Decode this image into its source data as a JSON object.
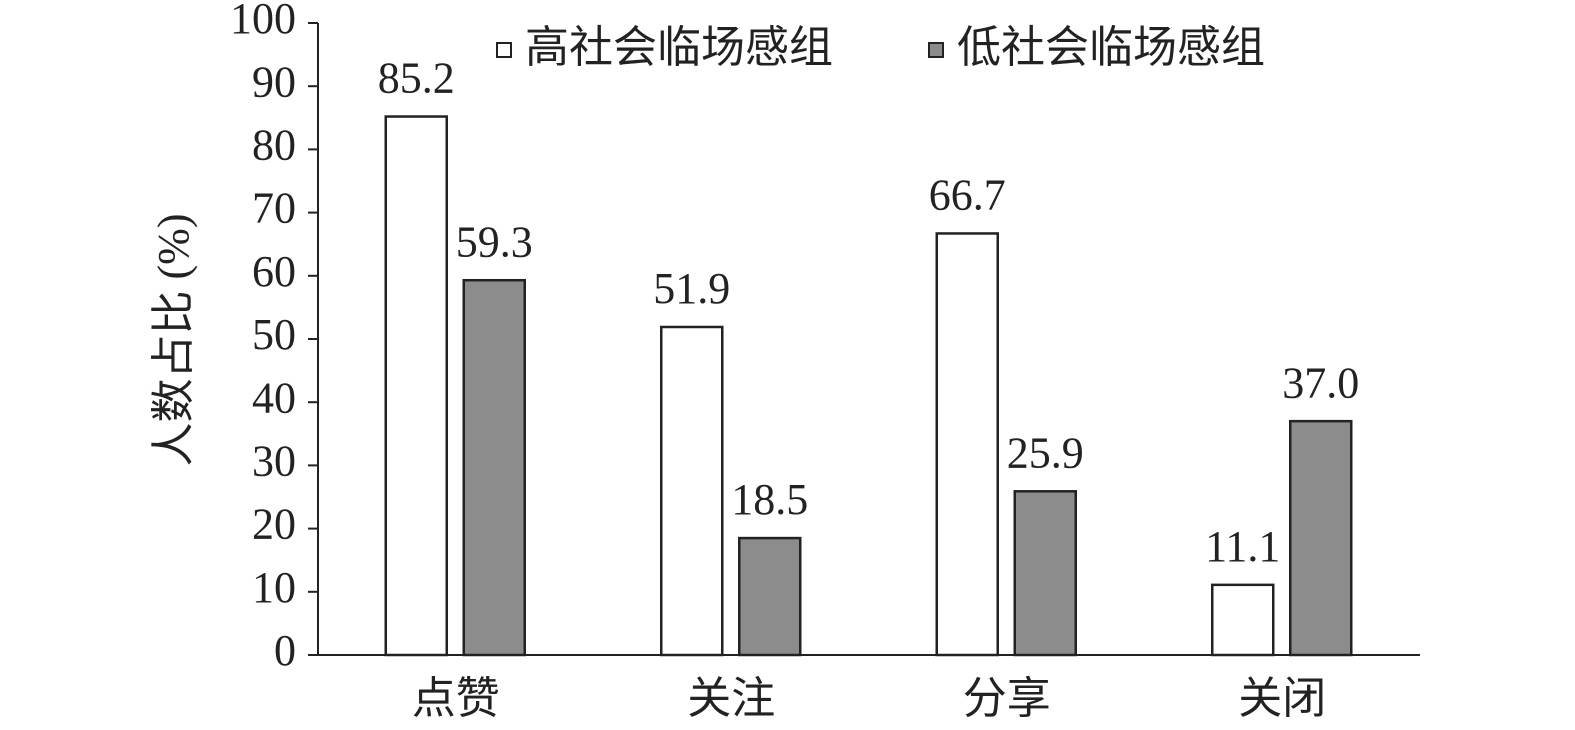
{
  "chart_data": {
    "type": "bar",
    "y_label": "人数占比 (%)",
    "categories": [
      "点赞",
      "关注",
      "分享",
      "关闭"
    ],
    "series": [
      {
        "name": "高社会临场感组",
        "color": "#ffffff",
        "values": [
          85.2,
          51.9,
          66.7,
          11.1
        ],
        "value_labels": [
          "85.2",
          "51.9",
          "66.7",
          "11.1"
        ]
      },
      {
        "name": "低社会临场感组",
        "color": "#8c8c8c",
        "values": [
          59.3,
          18.5,
          25.9,
          37.0
        ],
        "value_labels": [
          "59.3",
          "18.5",
          "25.9",
          "37.0"
        ]
      }
    ],
    "ylim": [
      0,
      100
    ],
    "yticks": [
      0,
      10,
      20,
      30,
      40,
      50,
      60,
      70,
      80,
      90,
      100
    ]
  }
}
